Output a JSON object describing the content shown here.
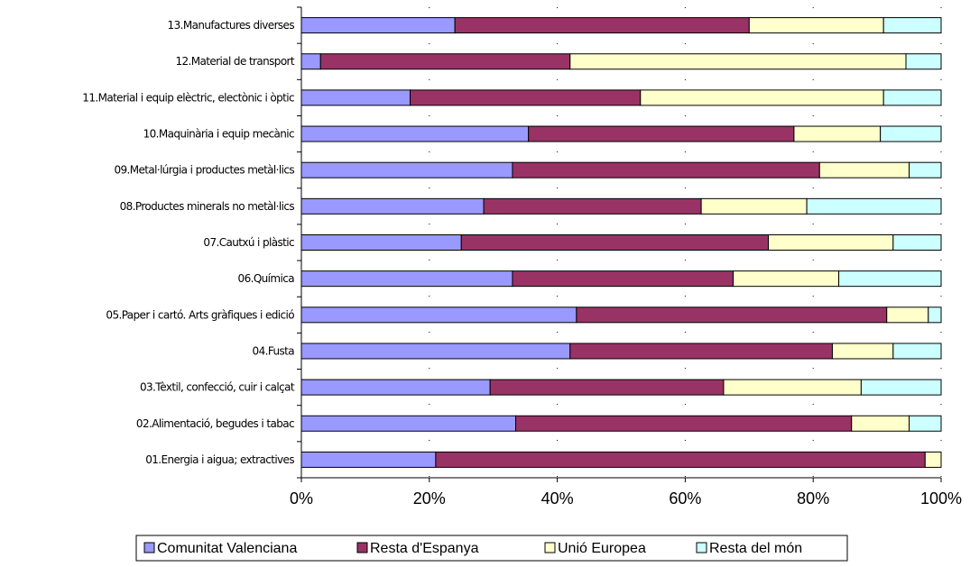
{
  "chart_data": {
    "type": "bar",
    "orientation": "horizontal",
    "stacked": "percent",
    "categories": [
      "13.Manufactures diverses",
      "12.Material de transport",
      "11.Material i equip elèctric, electònic i òptic",
      "10.Maquinària i equip mecànic",
      "09.Metal·lúrgia i productes metàl·lics",
      "08.Productes minerals no metàl·lics",
      "07.Cautxú i plàstic",
      "06.Química",
      "05.Paper i cartó. Arts gràfiques i edició",
      "04.Fusta",
      "03.Tèxtil, confecció, cuir i calçat",
      "02.Alimentació, begudes i tabac",
      "01.Energia i aigua; extractives"
    ],
    "series": [
      {
        "name": "Comunitat Valenciana",
        "color": "#9999ff",
        "values": [
          24,
          3,
          17,
          35.5,
          33,
          28.5,
          25,
          33,
          43,
          42,
          29.5,
          33.5,
          21
        ]
      },
      {
        "name": "Resta d'Espanya",
        "color": "#993366",
        "values": [
          46,
          39,
          36,
          41.5,
          48,
          34,
          48,
          34.5,
          48.5,
          41,
          36.5,
          52.5,
          76.5
        ]
      },
      {
        "name": "Unió Europea",
        "color": "#ffffcc",
        "values": [
          21,
          52.5,
          38,
          13.5,
          14,
          16.5,
          19.5,
          16.5,
          6.5,
          9.5,
          21.5,
          9,
          2.5
        ]
      },
      {
        "name": "Resta del món",
        "color": "#ccffff",
        "values": [
          9,
          5.5,
          9,
          9.5,
          5,
          21,
          7.5,
          16,
          2,
          7.5,
          12.5,
          5,
          0
        ]
      }
    ],
    "xlim": [
      0,
      100
    ],
    "x_ticks": [
      "0%",
      "20%",
      "40%",
      "60%",
      "80%",
      "100%"
    ],
    "legend_position": "bottom",
    "grid": "dotted vertical",
    "title": "",
    "xlabel": "",
    "ylabel": ""
  }
}
